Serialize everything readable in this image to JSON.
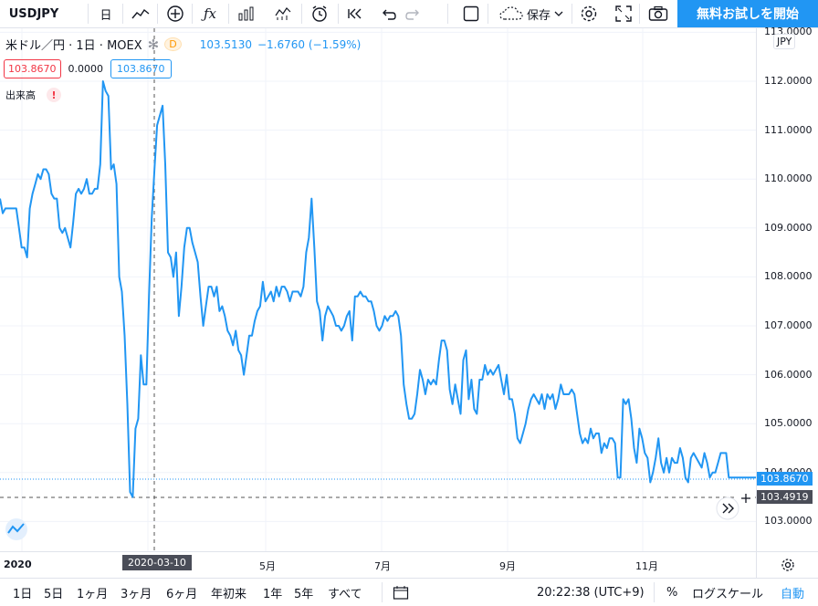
{
  "toolbar": {
    "symbol": "USDJPY",
    "interval": "日",
    "save_label": "保存",
    "cta_label": "無料お試しを開始"
  },
  "legend": {
    "title": "米ドル／円 · 1日 · MOEX",
    "source_badge": "D",
    "last": "103.5130",
    "change": "−1.6760 (−1.59%)",
    "bid": "103.8670",
    "spread": "0.0000",
    "ask": "103.8670",
    "volume_label": "出来高",
    "warning_mark": "!"
  },
  "price_scale": {
    "currency": "JPY",
    "labels": [
      "113.0000",
      "112.0000",
      "111.0000",
      "110.0000",
      "109.0000",
      "108.0000",
      "107.0000",
      "106.0000",
      "105.0000",
      "104.0000",
      "103.0000"
    ],
    "last_tag": "103.8670",
    "cursor_tag": "103.4919"
  },
  "time_scale": {
    "labels": [
      "2020",
      "5月",
      "7月",
      "9月",
      "11月"
    ],
    "cursor_tag": "2020-03-10"
  },
  "bottom": {
    "ranges": [
      "1日",
      "5日",
      "1ヶ月",
      "3ヶ月",
      "6ヶ月",
      "年初来",
      "1年",
      "5年",
      "すべて"
    ],
    "clock": "20:22:38 (UTC+9)",
    "percent": "%",
    "log": "ログスケール",
    "auto": "自動"
  },
  "colors": {
    "line": "#2196f3",
    "accent": "#2196f3",
    "down": "#f23645"
  },
  "chart_data": {
    "type": "line",
    "ylim": [
      102.5,
      113.1
    ],
    "values": [
      109.6,
      109.3,
      109.4,
      109.4,
      109.4,
      109.4,
      109.4,
      109.0,
      108.6,
      108.6,
      108.4,
      109.4,
      109.7,
      109.9,
      110.1,
      110.0,
      110.2,
      110.2,
      110.1,
      109.7,
      109.6,
      109.6,
      109.0,
      108.9,
      109.0,
      108.8,
      108.6,
      109.1,
      109.7,
      109.8,
      109.7,
      109.8,
      110.0,
      109.7,
      109.7,
      109.8,
      109.8,
      110.3,
      112.0,
      111.8,
      111.7,
      110.2,
      110.3,
      109.9,
      108.0,
      107.7,
      106.8,
      105.4,
      103.6,
      103.5,
      104.9,
      105.1,
      106.4,
      105.8,
      105.8,
      107.6,
      109.2,
      110.2,
      111.1,
      111.3,
      111.5,
      110.3,
      108.5,
      108.4,
      108.0,
      108.5,
      107.2,
      107.8,
      108.6,
      109.0,
      109.0,
      108.7,
      108.5,
      108.3,
      107.6,
      107.0,
      107.4,
      107.8,
      107.8,
      107.6,
      107.8,
      107.3,
      107.4,
      107.2,
      106.9,
      106.8,
      106.6,
      106.9,
      106.5,
      106.4,
      106.0,
      106.4,
      106.8,
      106.8,
      107.1,
      107.3,
      107.4,
      107.9,
      107.5,
      107.6,
      107.7,
      107.5,
      107.8,
      107.6,
      107.8,
      107.8,
      107.7,
      107.5,
      107.7,
      107.7,
      107.7,
      107.6,
      107.8,
      108.5,
      108.8,
      109.6,
      108.6,
      107.5,
      107.3,
      106.7,
      107.2,
      107.4,
      107.3,
      107.2,
      107.0,
      107.0,
      106.9,
      107.0,
      107.2,
      107.3,
      106.7,
      107.6,
      107.6,
      107.7,
      107.6,
      107.6,
      107.5,
      107.5,
      107.3,
      107.0,
      106.9,
      107.0,
      107.2,
      107.1,
      107.2,
      107.2,
      107.3,
      107.2,
      106.8,
      105.8,
      105.4,
      105.1,
      105.1,
      105.2,
      105.6,
      106.1,
      105.9,
      105.6,
      105.9,
      105.8,
      105.9,
      105.8,
      106.3,
      106.7,
      106.7,
      106.5,
      105.7,
      105.4,
      105.8,
      105.5,
      105.2,
      106.3,
      106.5,
      105.5,
      105.9,
      105.3,
      105.2,
      105.9,
      105.9,
      106.2,
      106.0,
      106.1,
      106.0,
      106.1,
      106.2,
      105.9,
      105.6,
      106.0,
      105.5,
      105.5,
      105.2,
      104.7,
      104.6,
      104.8,
      105.0,
      105.3,
      105.5,
      105.6,
      105.5,
      105.4,
      105.6,
      105.3,
      105.6,
      105.5,
      105.6,
      105.3,
      105.5,
      105.8,
      105.6,
      105.6,
      105.6,
      105.7,
      105.6,
      105.2,
      104.8,
      104.6,
      104.7,
      104.6,
      104.9,
      104.7,
      104.8,
      104.8,
      104.4,
      104.6,
      104.5,
      104.7,
      104.7,
      104.6,
      103.9,
      103.9,
      105.5,
      105.4,
      105.5,
      105.1,
      104.5,
      104.2,
      104.9,
      104.7,
      104.4,
      104.3,
      103.8,
      104.0,
      104.3,
      104.7,
      104.2,
      104.0,
      104.3,
      104.0,
      104.3,
      104.2,
      104.2,
      104.5,
      104.3,
      103.9,
      103.8,
      104.3,
      104.4,
      104.3,
      104.2,
      104.1,
      104.4,
      104.2,
      103.9,
      104.0,
      104.0,
      104.2,
      104.4,
      104.4,
      104.4,
      103.9,
      103.9,
      103.9,
      103.9,
      103.9,
      103.9,
      103.9,
      103.9,
      103.9,
      103.9,
      103.9
    ]
  }
}
